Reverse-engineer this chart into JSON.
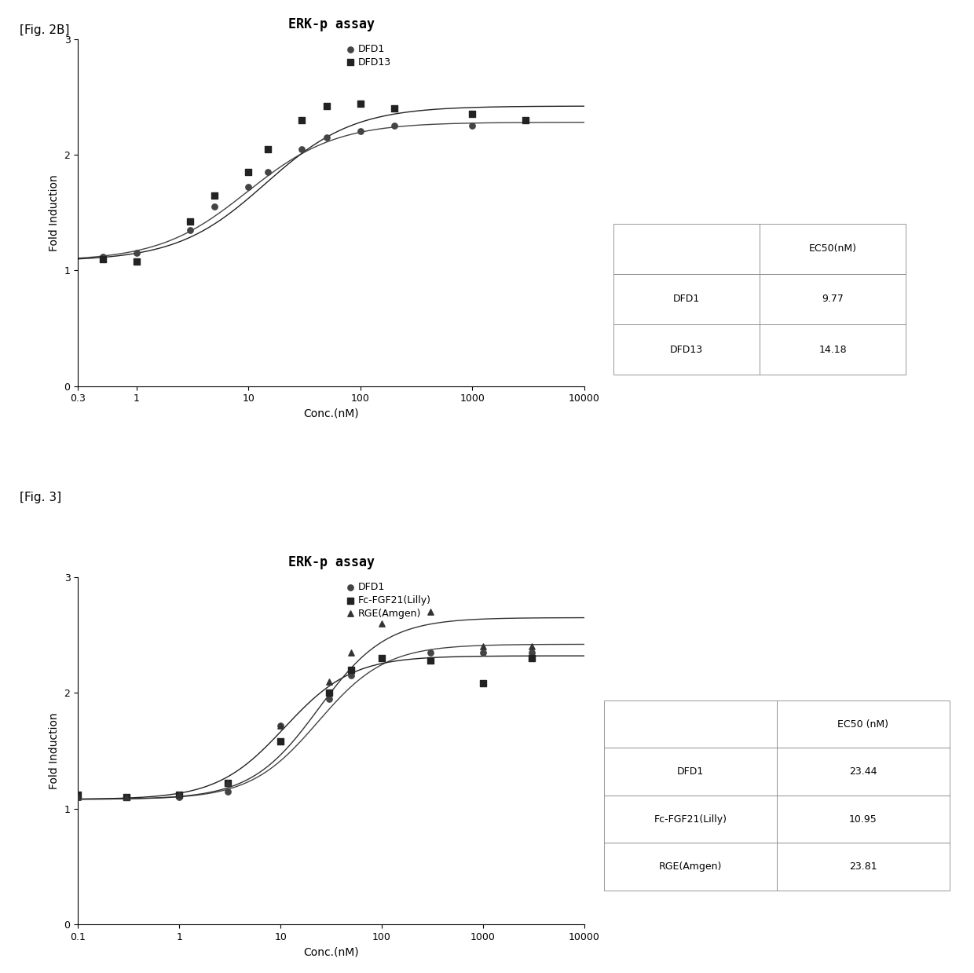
{
  "fig2b": {
    "title": "ERK-p assay",
    "xlabel": "Conc.(nM)",
    "ylabel": "Fold Induction",
    "label_fig": "[Fig. 2B]",
    "xmin": 0.3,
    "xmax": 5000,
    "xticks": [
      0.3,
      1,
      10,
      100,
      1000,
      10000
    ],
    "xticklabels": [
      "0.3",
      "1",
      "10",
      "100",
      "1000",
      "10000"
    ],
    "ylim": [
      0,
      3
    ],
    "yticks": [
      0,
      1,
      2,
      3
    ],
    "series": [
      {
        "name": "DFD1",
        "marker": "o",
        "color": "#444444",
        "ec50": 9.77,
        "bottom": 1.08,
        "top": 2.28,
        "hill": 1.1,
        "x_data": [
          0.5,
          1,
          3,
          5,
          10,
          15,
          30,
          50,
          100,
          200,
          1000,
          3000
        ],
        "y_data": [
          1.12,
          1.15,
          1.35,
          1.55,
          1.72,
          1.85,
          2.05,
          2.15,
          2.2,
          2.25,
          2.25,
          2.3
        ]
      },
      {
        "name": "DFD13",
        "marker": "s",
        "color": "#222222",
        "ec50": 14.18,
        "bottom": 1.08,
        "top": 2.42,
        "hill": 1.1,
        "x_data": [
          0.5,
          1,
          3,
          5,
          10,
          15,
          30,
          50,
          100,
          200,
          1000,
          3000
        ],
        "y_data": [
          1.1,
          1.08,
          1.42,
          1.65,
          1.85,
          2.05,
          2.3,
          2.42,
          2.44,
          2.4,
          2.35,
          2.3
        ]
      }
    ],
    "table_header": [
      "",
      "EC50(nM)"
    ],
    "table_rows": [
      [
        "DFD1",
        "9.77"
      ],
      [
        "DFD13",
        "14.18"
      ]
    ]
  },
  "fig3": {
    "title": "ERK-p assay",
    "xlabel": "Conc.(nM)",
    "ylabel": "Fold Induction",
    "label_fig": "[Fig. 3]",
    "xmin": 0.1,
    "xmax": 5000,
    "xticks": [
      0.1,
      1,
      10,
      100,
      1000,
      10000
    ],
    "xticklabels": [
      "0.1",
      "1",
      "10",
      "100",
      "1000",
      "10000"
    ],
    "ylim": [
      0,
      3
    ],
    "yticks": [
      0,
      1,
      2,
      3
    ],
    "series": [
      {
        "name": "DFD1",
        "marker": "o",
        "color": "#444444",
        "ec50": 23.44,
        "bottom": 1.08,
        "top": 2.42,
        "hill": 1.3,
        "x_data": [
          0.1,
          0.3,
          1,
          3,
          10,
          30,
          50,
          100,
          300,
          1000,
          3000
        ],
        "y_data": [
          1.1,
          1.1,
          1.1,
          1.15,
          1.72,
          1.95,
          2.15,
          2.3,
          2.35,
          2.35,
          2.35
        ]
      },
      {
        "name": "Fc-FGF21(Lilly)",
        "marker": "s",
        "color": "#222222",
        "ec50": 10.95,
        "bottom": 1.08,
        "top": 2.32,
        "hill": 1.3,
        "x_data": [
          0.1,
          0.3,
          1,
          3,
          10,
          30,
          50,
          100,
          300,
          1000,
          3000
        ],
        "y_data": [
          1.12,
          1.1,
          1.12,
          1.22,
          1.58,
          2.0,
          2.2,
          2.3,
          2.28,
          2.08,
          2.3
        ]
      },
      {
        "name": "RGE(Amgen)",
        "marker": "^",
        "color": "#333333",
        "ec50": 23.81,
        "bottom": 1.08,
        "top": 2.65,
        "hill": 1.3,
        "x_data": [
          0.1,
          0.3,
          1,
          3,
          10,
          30,
          50,
          100,
          300,
          1000,
          3000
        ],
        "y_data": [
          1.1,
          1.1,
          1.12,
          1.22,
          1.72,
          2.1,
          2.35,
          2.6,
          2.7,
          2.4,
          2.4
        ]
      }
    ],
    "table_header": [
      "",
      "EC50 (nM)"
    ],
    "table_rows": [
      [
        "DFD1",
        "23.44"
      ],
      [
        "Fc-FGF21(Lilly)",
        "10.95"
      ],
      [
        "RGE(Amgen)",
        "23.81"
      ]
    ]
  },
  "bg_color": "#ffffff"
}
